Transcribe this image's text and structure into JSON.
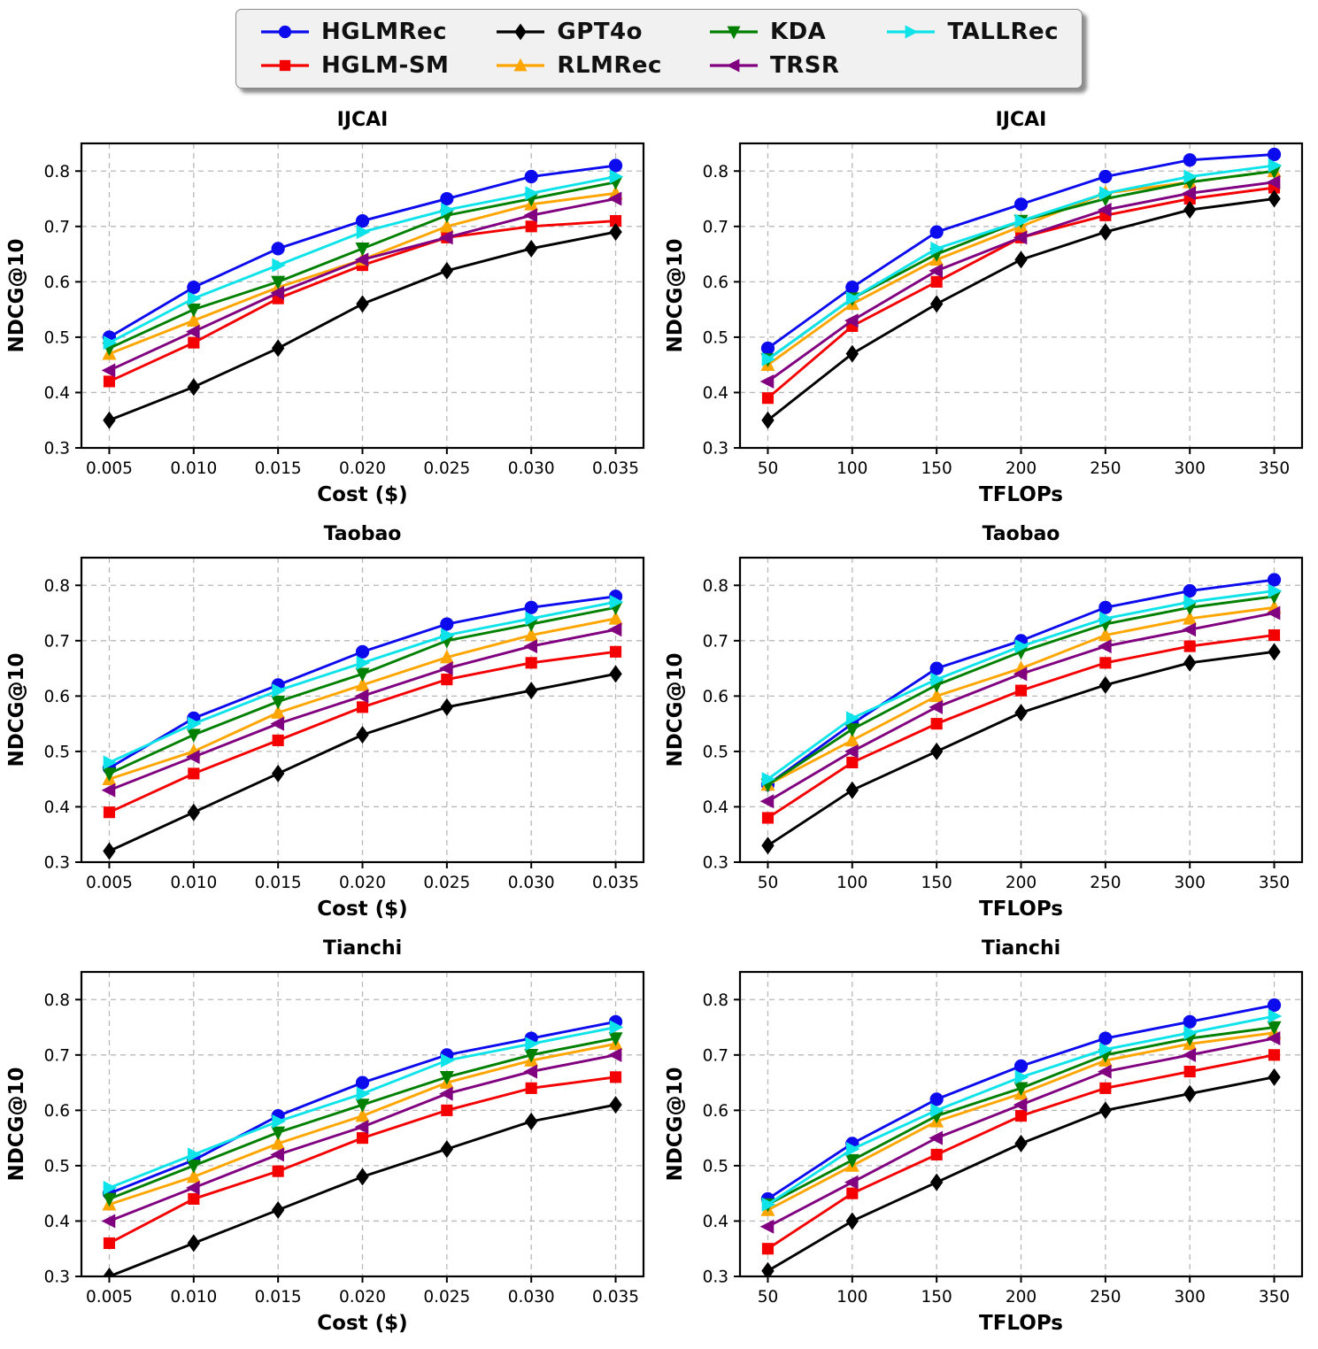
{
  "figure": {
    "background": "#ffffff",
    "grid_color": "#b8b8b8",
    "axis_color": "#000000"
  },
  "legend": {
    "position": "top-center",
    "columns": [
      [
        0,
        1
      ],
      [
        2,
        3
      ],
      [
        4,
        5
      ],
      [
        6
      ]
    ],
    "items": [
      {
        "label": "HGLMRec",
        "color": "#0b0bed",
        "marker": "circle"
      },
      {
        "label": "HGLM-SM",
        "color": "#f40000",
        "marker": "square"
      },
      {
        "label": "GPT4o",
        "color": "#000000",
        "marker": "diamond"
      },
      {
        "label": "RLMRec",
        "color": "#ffa500",
        "marker": "triangle-up"
      },
      {
        "label": "KDA",
        "color": "#008000",
        "marker": "triangle-down"
      },
      {
        "label": "TRSR",
        "color": "#800080",
        "marker": "triangle-left"
      },
      {
        "label": "TALLRec",
        "color": "#0fe3ea",
        "marker": "triangle-right"
      }
    ]
  },
  "chart_data": [
    {
      "type": "line",
      "title": "IJCAI",
      "xlabel": "Cost ($)",
      "ylabel": "NDCG@10",
      "x": [
        0.005,
        0.01,
        0.015,
        0.02,
        0.025,
        0.03,
        0.035
      ],
      "xticklabels": [
        "0.005",
        "0.010",
        "0.015",
        "0.020",
        "0.025",
        "0.030",
        "0.035"
      ],
      "yticks": [
        0.3,
        0.4,
        0.5,
        0.6,
        0.7,
        0.8
      ],
      "ylim": [
        0.3,
        0.85
      ],
      "grid": true,
      "series": [
        {
          "name": "HGLMRec",
          "values": [
            0.5,
            0.59,
            0.66,
            0.71,
            0.75,
            0.79,
            0.81
          ]
        },
        {
          "name": "HGLM-SM",
          "values": [
            0.42,
            0.49,
            0.57,
            0.63,
            0.68,
            0.7,
            0.71
          ]
        },
        {
          "name": "GPT4o",
          "values": [
            0.35,
            0.41,
            0.48,
            0.56,
            0.62,
            0.66,
            0.69
          ]
        },
        {
          "name": "RLMRec",
          "values": [
            0.47,
            0.53,
            0.59,
            0.64,
            0.7,
            0.74,
            0.76
          ]
        },
        {
          "name": "KDA",
          "values": [
            0.48,
            0.55,
            0.6,
            0.66,
            0.72,
            0.75,
            0.78
          ]
        },
        {
          "name": "TRSR",
          "values": [
            0.44,
            0.51,
            0.58,
            0.64,
            0.68,
            0.72,
            0.75
          ]
        },
        {
          "name": "TALLRec",
          "values": [
            0.49,
            0.57,
            0.63,
            0.69,
            0.73,
            0.76,
            0.79
          ]
        }
      ]
    },
    {
      "type": "line",
      "title": "IJCAI",
      "xlabel": "TFLOPs",
      "ylabel": "NDCG@10",
      "x": [
        50,
        100,
        150,
        200,
        250,
        300,
        350
      ],
      "xticklabels": [
        "50",
        "100",
        "150",
        "200",
        "250",
        "300",
        "350"
      ],
      "yticks": [
        0.3,
        0.4,
        0.5,
        0.6,
        0.7,
        0.8
      ],
      "ylim": [
        0.3,
        0.85
      ],
      "grid": true,
      "series": [
        {
          "name": "HGLMRec",
          "values": [
            0.48,
            0.59,
            0.69,
            0.74,
            0.79,
            0.82,
            0.83
          ]
        },
        {
          "name": "HGLM-SM",
          "values": [
            0.39,
            0.52,
            0.6,
            0.68,
            0.72,
            0.75,
            0.77
          ]
        },
        {
          "name": "GPT4o",
          "values": [
            0.35,
            0.47,
            0.56,
            0.64,
            0.69,
            0.73,
            0.75
          ]
        },
        {
          "name": "RLMRec",
          "values": [
            0.45,
            0.56,
            0.64,
            0.7,
            0.76,
            0.78,
            0.8
          ]
        },
        {
          "name": "KDA",
          "values": [
            0.46,
            0.57,
            0.65,
            0.71,
            0.75,
            0.78,
            0.8
          ]
        },
        {
          "name": "TRSR",
          "values": [
            0.42,
            0.53,
            0.62,
            0.68,
            0.73,
            0.76,
            0.78
          ]
        },
        {
          "name": "TALLRec",
          "values": [
            0.46,
            0.57,
            0.66,
            0.71,
            0.76,
            0.79,
            0.81
          ]
        }
      ]
    },
    {
      "type": "line",
      "title": "Taobao",
      "xlabel": "Cost ($)",
      "ylabel": "NDCG@10",
      "x": [
        0.005,
        0.01,
        0.015,
        0.02,
        0.025,
        0.03,
        0.035
      ],
      "xticklabels": [
        "0.005",
        "0.010",
        "0.015",
        "0.020",
        "0.025",
        "0.030",
        "0.035"
      ],
      "yticks": [
        0.3,
        0.4,
        0.5,
        0.6,
        0.7,
        0.8
      ],
      "ylim": [
        0.3,
        0.85
      ],
      "grid": true,
      "series": [
        {
          "name": "HGLMRec",
          "values": [
            0.47,
            0.56,
            0.62,
            0.68,
            0.73,
            0.76,
            0.78
          ]
        },
        {
          "name": "HGLM-SM",
          "values": [
            0.39,
            0.46,
            0.52,
            0.58,
            0.63,
            0.66,
            0.68
          ]
        },
        {
          "name": "GPT4o",
          "values": [
            0.32,
            0.39,
            0.46,
            0.53,
            0.58,
            0.61,
            0.64
          ]
        },
        {
          "name": "RLMRec",
          "values": [
            0.45,
            0.5,
            0.57,
            0.62,
            0.67,
            0.71,
            0.74
          ]
        },
        {
          "name": "KDA",
          "values": [
            0.46,
            0.53,
            0.59,
            0.64,
            0.7,
            0.73,
            0.76
          ]
        },
        {
          "name": "TRSR",
          "values": [
            0.43,
            0.49,
            0.55,
            0.6,
            0.65,
            0.69,
            0.72
          ]
        },
        {
          "name": "TALLRec",
          "values": [
            0.48,
            0.55,
            0.61,
            0.66,
            0.71,
            0.74,
            0.77
          ]
        }
      ]
    },
    {
      "type": "line",
      "title": "Taobao",
      "xlabel": "TFLOPs",
      "ylabel": "NDCG@10",
      "x": [
        50,
        100,
        150,
        200,
        250,
        300,
        350
      ],
      "xticklabels": [
        "50",
        "100",
        "150",
        "200",
        "250",
        "300",
        "350"
      ],
      "yticks": [
        0.3,
        0.4,
        0.5,
        0.6,
        0.7,
        0.8
      ],
      "ylim": [
        0.3,
        0.85
      ],
      "grid": true,
      "series": [
        {
          "name": "HGLMRec",
          "values": [
            0.44,
            0.55,
            0.65,
            0.7,
            0.76,
            0.79,
            0.81
          ]
        },
        {
          "name": "HGLM-SM",
          "values": [
            0.38,
            0.48,
            0.55,
            0.61,
            0.66,
            0.69,
            0.71
          ]
        },
        {
          "name": "GPT4o",
          "values": [
            0.33,
            0.43,
            0.5,
            0.57,
            0.62,
            0.66,
            0.68
          ]
        },
        {
          "name": "RLMRec",
          "values": [
            0.44,
            0.52,
            0.6,
            0.65,
            0.71,
            0.74,
            0.76
          ]
        },
        {
          "name": "KDA",
          "values": [
            0.44,
            0.54,
            0.62,
            0.68,
            0.73,
            0.76,
            0.78
          ]
        },
        {
          "name": "TRSR",
          "values": [
            0.41,
            0.5,
            0.58,
            0.64,
            0.69,
            0.72,
            0.75
          ]
        },
        {
          "name": "TALLRec",
          "values": [
            0.45,
            0.56,
            0.63,
            0.69,
            0.74,
            0.77,
            0.79
          ]
        }
      ]
    },
    {
      "type": "line",
      "title": "Tianchi",
      "xlabel": "Cost ($)",
      "ylabel": "NDCG@10",
      "x": [
        0.005,
        0.01,
        0.015,
        0.02,
        0.025,
        0.03,
        0.035
      ],
      "xticklabels": [
        "0.005",
        "0.010",
        "0.015",
        "0.020",
        "0.025",
        "0.030",
        "0.035"
      ],
      "yticks": [
        0.3,
        0.4,
        0.5,
        0.6,
        0.7,
        0.8
      ],
      "ylim": [
        0.3,
        0.85
      ],
      "grid": true,
      "series": [
        {
          "name": "HGLMRec",
          "values": [
            0.45,
            0.51,
            0.59,
            0.65,
            0.7,
            0.73,
            0.76
          ]
        },
        {
          "name": "HGLM-SM",
          "values": [
            0.36,
            0.44,
            0.49,
            0.55,
            0.6,
            0.64,
            0.66
          ]
        },
        {
          "name": "GPT4o",
          "values": [
            0.3,
            0.36,
            0.42,
            0.48,
            0.53,
            0.58,
            0.61
          ]
        },
        {
          "name": "RLMRec",
          "values": [
            0.43,
            0.48,
            0.54,
            0.59,
            0.65,
            0.69,
            0.72
          ]
        },
        {
          "name": "KDA",
          "values": [
            0.44,
            0.5,
            0.56,
            0.61,
            0.66,
            0.7,
            0.73
          ]
        },
        {
          "name": "TRSR",
          "values": [
            0.4,
            0.46,
            0.52,
            0.57,
            0.63,
            0.67,
            0.7
          ]
        },
        {
          "name": "TALLRec",
          "values": [
            0.46,
            0.52,
            0.58,
            0.63,
            0.69,
            0.72,
            0.75
          ]
        }
      ]
    },
    {
      "type": "line",
      "title": "Tianchi",
      "xlabel": "TFLOPs",
      "ylabel": "NDCG@10",
      "x": [
        50,
        100,
        150,
        200,
        250,
        300,
        350
      ],
      "xticklabels": [
        "50",
        "100",
        "150",
        "200",
        "250",
        "300",
        "350"
      ],
      "yticks": [
        0.3,
        0.4,
        0.5,
        0.6,
        0.7,
        0.8
      ],
      "ylim": [
        0.3,
        0.85
      ],
      "grid": true,
      "series": [
        {
          "name": "HGLMRec",
          "values": [
            0.44,
            0.54,
            0.62,
            0.68,
            0.73,
            0.76,
            0.79
          ]
        },
        {
          "name": "HGLM-SM",
          "values": [
            0.35,
            0.45,
            0.52,
            0.59,
            0.64,
            0.67,
            0.7
          ]
        },
        {
          "name": "GPT4o",
          "values": [
            0.31,
            0.4,
            0.47,
            0.54,
            0.6,
            0.63,
            0.66
          ]
        },
        {
          "name": "RLMRec",
          "values": [
            0.42,
            0.5,
            0.58,
            0.63,
            0.69,
            0.72,
            0.74
          ]
        },
        {
          "name": "KDA",
          "values": [
            0.43,
            0.51,
            0.59,
            0.64,
            0.7,
            0.73,
            0.75
          ]
        },
        {
          "name": "TRSR",
          "values": [
            0.39,
            0.47,
            0.55,
            0.61,
            0.67,
            0.7,
            0.73
          ]
        },
        {
          "name": "TALLRec",
          "values": [
            0.43,
            0.53,
            0.6,
            0.66,
            0.71,
            0.74,
            0.77
          ]
        }
      ]
    }
  ]
}
